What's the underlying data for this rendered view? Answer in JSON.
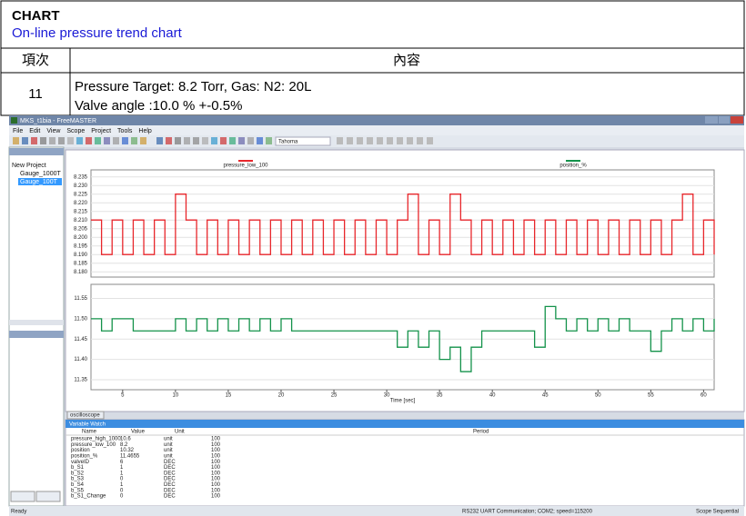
{
  "header": {
    "title": "CHART",
    "subtitle": "On-line pressure trend chart"
  },
  "table": {
    "columns": [
      "項次",
      "內容"
    ],
    "rows": [
      [
        "11",
        "Pressure Target: 8.2 Torr, Gas: N2: 20L",
        "Valve angle :10.0 % +-0.5%"
      ]
    ]
  },
  "screenshot": {
    "window_title": "MKS_t1bia - FreeMASTER",
    "menu": [
      "File",
      "Edit",
      "View",
      "Scope",
      "Project",
      "Tools",
      "Help"
    ],
    "font_box": "Tahoma",
    "tree": [
      "New Project",
      "Gauge_1000T",
      "Gauge_100T"
    ],
    "scope": {
      "xlim": [
        2,
        61
      ],
      "xticks": [
        5,
        10,
        15,
        20,
        25,
        30,
        35,
        40,
        45,
        50,
        55,
        60
      ],
      "xlabel": "Time [sec]",
      "x": [
        2,
        3,
        4,
        5,
        6,
        7,
        8,
        9,
        10,
        11,
        12,
        13,
        14,
        15,
        16,
        17,
        18,
        19,
        20,
        21,
        22,
        23,
        24,
        25,
        26,
        27,
        28,
        29,
        30,
        31,
        32,
        33,
        34,
        35,
        36,
        37,
        38,
        39,
        40,
        41,
        42,
        43,
        44,
        45,
        46,
        47,
        48,
        49,
        50,
        51,
        52,
        53,
        54,
        55,
        56,
        57,
        58,
        59,
        60,
        61
      ],
      "plots": [
        {
          "name": "pressure_low_100",
          "color": "#e8262b",
          "ylim": [
            8.178,
            8.238
          ],
          "yticks": [
            {
              "value": 8.18,
              "label": "8.180"
            },
            {
              "value": 8.185,
              "label": "8.185"
            },
            {
              "value": 8.19,
              "label": "8.190"
            },
            {
              "value": 8.195,
              "label": "8.195"
            },
            {
              "value": 8.2,
              "label": "8.200"
            },
            {
              "value": 8.205,
              "label": "8.205"
            },
            {
              "value": 8.21,
              "label": "8.210"
            },
            {
              "value": 8.215,
              "label": "8.215"
            },
            {
              "value": 8.22,
              "label": "8.220"
            },
            {
              "value": 8.225,
              "label": "8.225"
            },
            {
              "value": 8.23,
              "label": "8.230"
            },
            {
              "value": 8.235,
              "label": "8.235"
            }
          ],
          "values": [
            8.21,
            8.19,
            8.21,
            8.19,
            8.21,
            8.19,
            8.21,
            8.19,
            8.225,
            8.21,
            8.19,
            8.21,
            8.19,
            8.21,
            8.19,
            8.21,
            8.19,
            8.21,
            8.19,
            8.21,
            8.19,
            8.21,
            8.19,
            8.21,
            8.19,
            8.21,
            8.19,
            8.21,
            8.19,
            8.21,
            8.225,
            8.19,
            8.21,
            8.19,
            8.225,
            8.21,
            8.19,
            8.21,
            8.19,
            8.21,
            8.19,
            8.21,
            8.19,
            8.21,
            8.19,
            8.21,
            8.19,
            8.21,
            8.19,
            8.21,
            8.19,
            8.21,
            8.19,
            8.21,
            8.19,
            8.21,
            8.225,
            8.19,
            8.21,
            8.19
          ]
        },
        {
          "name": "position_%",
          "color": "#13924a",
          "ylim": [
            11.33,
            11.58
          ],
          "yticks": [
            11.35,
            {
              "value": 11.4,
              "label": "11.40"
            },
            11.45,
            {
              "value": 11.5,
              "label": "11.50"
            },
            11.55
          ],
          "values": [
            11.5,
            11.47,
            11.5,
            11.5,
            11.47,
            11.47,
            11.47,
            11.47,
            11.5,
            11.47,
            11.5,
            11.47,
            11.5,
            11.47,
            11.5,
            11.47,
            11.5,
            11.47,
            11.5,
            11.47,
            11.47,
            11.47,
            11.47,
            11.47,
            11.47,
            11.47,
            11.47,
            11.47,
            11.47,
            11.43,
            11.47,
            11.43,
            11.47,
            11.4,
            11.43,
            11.37,
            11.43,
            11.47,
            11.47,
            11.47,
            11.47,
            11.47,
            11.43,
            11.53,
            11.5,
            11.47,
            11.5,
            11.47,
            11.5,
            11.47,
            11.5,
            11.47,
            11.47,
            11.42,
            11.47,
            11.5,
            11.47,
            11.5,
            11.47,
            11.5
          ]
        }
      ]
    },
    "tab": "oscilloscope",
    "watch": {
      "title": "Variable Watch",
      "columns": [
        "Name",
        "Value",
        "Unit",
        "Period"
      ],
      "rows": [
        [
          "pressure_high_1000",
          "10.6",
          "unit",
          "100"
        ],
        [
          "pressure_low_100",
          "8.2",
          "unit",
          "100"
        ],
        [
          "position",
          "10.32",
          "unit",
          "100"
        ],
        [
          "position_%",
          "11.4655",
          "unit",
          "100"
        ],
        [
          "valveID",
          "6",
          "DEC",
          "100"
        ],
        [
          "b_S1",
          "1",
          "DEC",
          "100"
        ],
        [
          "b_S2",
          "1",
          "DEC",
          "100"
        ],
        [
          "b_S3",
          "0",
          "DEC",
          "100"
        ],
        [
          "b_S4",
          "1",
          "DEC",
          "100"
        ],
        [
          "b_S5",
          "0",
          "DEC",
          "100"
        ],
        [
          "b_S1_Change",
          "0",
          "DEC",
          "100"
        ]
      ]
    },
    "status": [
      "Ready",
      "RS232 UART Communication; COM2; speed=115200",
      "Scope Sequential"
    ]
  }
}
